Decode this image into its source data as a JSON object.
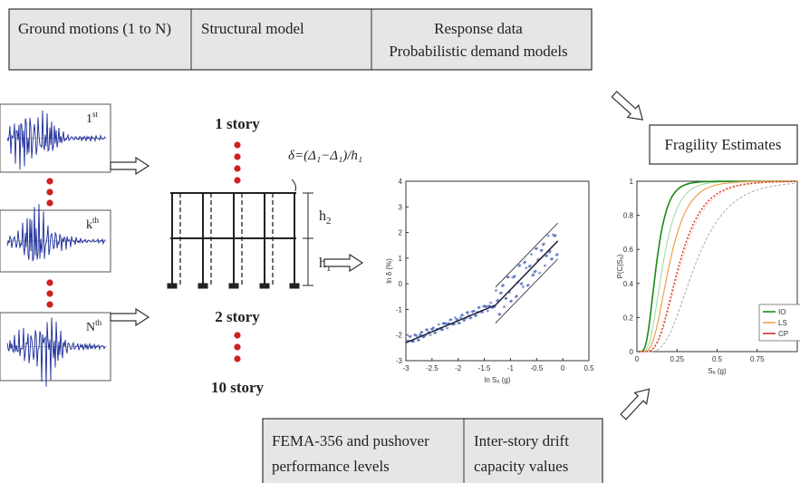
{
  "header": {
    "ground_motions": "Ground motions (1 to N)",
    "structural_model": "Structural model",
    "response": [
      "Response data",
      "Probabilistic demand models"
    ]
  },
  "ground_motions": [
    {
      "base": "1",
      "sup": "st"
    },
    {
      "base": "k",
      "sup": "th"
    },
    {
      "base": "N",
      "sup": "th"
    }
  ],
  "structure": {
    "stories": [
      "1 story",
      "2 story",
      "10 story"
    ],
    "drift_formula": "δ=(Δ₁−Δ₁)/h₁",
    "heights": [
      {
        "base": "h",
        "sub": "2"
      },
      {
        "base": "h",
        "sub": "1"
      }
    ]
  },
  "demand_plot": {
    "xlabel": "ln Sₐ (g)",
    "ylabel": "ln δ (%)",
    "xlim": [
      -3,
      0.5
    ],
    "ylim": [
      -3,
      4
    ],
    "xticks": [
      -3,
      -2.5,
      -2,
      -1.5,
      -1,
      -0.5,
      0,
      0.5
    ],
    "yticks": [
      -3,
      -2,
      -1,
      0,
      1,
      2,
      3,
      4
    ]
  },
  "fragility": {
    "title": "Fragility Estimates",
    "xlabel": "Sₐ (g)",
    "ylabel": "P(C|Sₐ)",
    "xlim": [
      0,
      1
    ],
    "ylim": [
      0,
      1
    ],
    "xticks": [
      0,
      0.25,
      0.5,
      0.75
    ],
    "yticks": [
      0,
      0.2,
      0.4,
      0.6,
      0.8,
      1
    ],
    "legend": [
      {
        "name": "IO",
        "color": "#1a8a1a"
      },
      {
        "name": "LS",
        "color": "#f0a050"
      },
      {
        "name": "CP",
        "color": "#d0302a"
      }
    ]
  },
  "capacity": {
    "fema": [
      "FEMA-356 and pushover",
      "performance levels"
    ],
    "drift": [
      "Inter-story drift",
      "capacity values"
    ]
  }
}
